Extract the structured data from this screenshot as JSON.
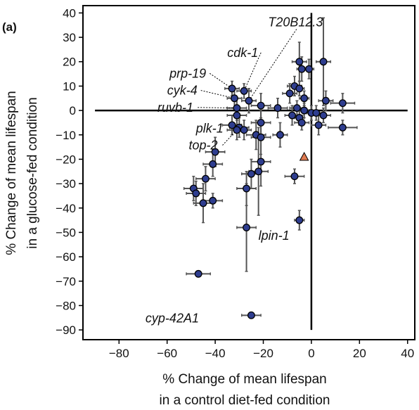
{
  "panel_label": "(a)",
  "chart_data": {
    "type": "scatter",
    "xlabel_line1": "% Change of mean lifespan",
    "xlabel_line2": "in a control diet-fed condition",
    "ylabel_line1": "% Change of mean lifespan",
    "ylabel_line2": "in a glucose-fed condition",
    "xlim": [
      -95,
      43
    ],
    "ylim": [
      -94,
      43
    ],
    "xticks": [
      -80,
      -60,
      -40,
      -20,
      0,
      20,
      40
    ],
    "yticks": [
      40,
      30,
      20,
      10,
      0,
      -10,
      -20,
      -30,
      -40,
      -50,
      -60,
      -70,
      -80,
      -90
    ],
    "grid": false,
    "colors": {
      "point": "#2e3d8f",
      "reference": "#e07a50",
      "errorbar": "#555555",
      "axis": "#000000"
    },
    "reference_point": {
      "x": -3,
      "y": -19,
      "marker": "triangle"
    },
    "points": [
      {
        "x": 5,
        "y": 20,
        "xerr": 3,
        "yerr": 18
      },
      {
        "x": -5,
        "y": 20,
        "xerr": 3,
        "yerr": 8
      },
      {
        "x": -4,
        "y": 17,
        "xerr": 2,
        "yerr": 5
      },
      {
        "x": -1,
        "y": 17,
        "xerr": 2,
        "yerr": 4
      },
      {
        "x": -7,
        "y": 10,
        "xerr": 3,
        "yerr": 4
      },
      {
        "x": -5,
        "y": 9,
        "xerr": 2,
        "yerr": 3
      },
      {
        "x": -9,
        "y": 7,
        "xerr": 3,
        "yerr": 4
      },
      {
        "x": -3,
        "y": 5,
        "xerr": 2,
        "yerr": 3
      },
      {
        "x": 6,
        "y": 4,
        "xerr": 3,
        "yerr": 4
      },
      {
        "x": 13,
        "y": 3,
        "xerr": 5,
        "yerr": 4
      },
      {
        "x": -21,
        "y": 2,
        "xerr": 4,
        "yerr": 5
      },
      {
        "x": -14,
        "y": 1,
        "xerr": 4,
        "yerr": 4
      },
      {
        "x": -6,
        "y": 1,
        "xerr": 3,
        "yerr": 3
      },
      {
        "x": -3,
        "y": 0,
        "xerr": 2,
        "yerr": 3
      },
      {
        "x": 0,
        "y": -1,
        "xerr": 2,
        "yerr": 3
      },
      {
        "x": 2,
        "y": -1,
        "xerr": 3,
        "yerr": 3
      },
      {
        "x": 5,
        "y": -2,
        "xerr": 3,
        "yerr": 3
      },
      {
        "x": -8,
        "y": -2,
        "xerr": 3,
        "yerr": 4
      },
      {
        "x": -5,
        "y": -3,
        "xerr": 2,
        "yerr": 3
      },
      {
        "x": -4,
        "y": -5,
        "xerr": 3,
        "yerr": 3
      },
      {
        "x": 3,
        "y": -6,
        "xerr": 3,
        "yerr": 4
      },
      {
        "x": 13,
        "y": -7,
        "xerr": 6,
        "yerr": 3
      },
      {
        "x": -33,
        "y": 9,
        "xerr": 3,
        "yerr": 3
      },
      {
        "x": -28,
        "y": 8,
        "xerr": 3,
        "yerr": 3
      },
      {
        "x": -26,
        "y": 4,
        "xerr": 3,
        "yerr": 5
      },
      {
        "x": -32,
        "y": 5,
        "xerr": 3,
        "yerr": 4
      },
      {
        "x": -31,
        "y": 1,
        "xerr": 4,
        "yerr": 4
      },
      {
        "x": -31,
        "y": -2,
        "xerr": 4,
        "yerr": 4
      },
      {
        "x": -33,
        "y": -6,
        "xerr": 4,
        "yerr": 4
      },
      {
        "x": -30,
        "y": -7,
        "xerr": 4,
        "yerr": 4
      },
      {
        "x": -31,
        "y": -8,
        "xerr": 4,
        "yerr": 4
      },
      {
        "x": -28,
        "y": -8,
        "xerr": 3,
        "yerr": 4
      },
      {
        "x": -21,
        "y": -5,
        "xerr": 4,
        "yerr": 5
      },
      {
        "x": -23,
        "y": -10,
        "xerr": 4,
        "yerr": 6
      },
      {
        "x": -21,
        "y": -11,
        "xerr": 4,
        "yerr": 7
      },
      {
        "x": -13,
        "y": -10,
        "xerr": 3,
        "yerr": 5
      },
      {
        "x": -21,
        "y": -21,
        "xerr": 4,
        "yerr": 10
      },
      {
        "x": -22,
        "y": -25,
        "xerr": 4,
        "yerr": 18
      },
      {
        "x": -40,
        "y": -17,
        "xerr": 4,
        "yerr": 6
      },
      {
        "x": -41,
        "y": -22,
        "xerr": 4,
        "yerr": 5
      },
      {
        "x": -25,
        "y": -26,
        "xerr": 4,
        "yerr": 6
      },
      {
        "x": -27,
        "y": -32,
        "xerr": 4,
        "yerr": 7
      },
      {
        "x": -7,
        "y": -27,
        "xerr": 4,
        "yerr": 3
      },
      {
        "x": -44,
        "y": -28,
        "xerr": 4,
        "yerr": 5
      },
      {
        "x": -49,
        "y": -32,
        "xerr": 4,
        "yerr": 5
      },
      {
        "x": -48,
        "y": -34,
        "xerr": 4,
        "yerr": 5
      },
      {
        "x": -45,
        "y": -38,
        "xerr": 4,
        "yerr": 8
      },
      {
        "x": -41,
        "y": -37,
        "xerr": 4,
        "yerr": 3
      },
      {
        "x": -27,
        "y": -48,
        "xerr": 4,
        "yerr": 18
      },
      {
        "x": -5,
        "y": -45,
        "xerr": 2,
        "yerr": 4
      },
      {
        "x": -47,
        "y": -67,
        "xerr": 5,
        "yerr": 1
      },
      {
        "x": -25,
        "y": -84,
        "xerr": 4,
        "yerr": 1
      }
    ],
    "annotations": [
      {
        "text": "T20B12.3",
        "tx": -18,
        "ty": 34.5,
        "px": -26,
        "py": 4,
        "leader": true
      },
      {
        "text": "cdk-1",
        "tx": -35,
        "ty": 22,
        "px": -28,
        "py": 8,
        "leader": true
      },
      {
        "text": "prp-19",
        "tx": -59,
        "ty": 13.5,
        "px": -33,
        "py": 9,
        "leader": true
      },
      {
        "text": "cyk-4",
        "tx": -60,
        "ty": 6.5,
        "px": -32,
        "py": 5,
        "leader": true
      },
      {
        "text": "ruvb-1",
        "tx": -64,
        "ty": -0.5,
        "px": -31,
        "py": 1,
        "leader": true
      },
      {
        "text": "plk-1",
        "tx": -48,
        "ty": -9,
        "px": -33,
        "py": -6,
        "leader": true
      },
      {
        "text": "top-2",
        "tx": -51,
        "ty": -16,
        "px": -31,
        "py": -8,
        "leader": true
      },
      {
        "text": "lpin-1",
        "tx": -22,
        "ty": -53,
        "px": -5,
        "py": -45,
        "leader": false
      },
      {
        "text": "cyp-42A1",
        "tx": -69,
        "ty": -87,
        "px": -25,
        "py": -84,
        "leader": false
      }
    ]
  }
}
